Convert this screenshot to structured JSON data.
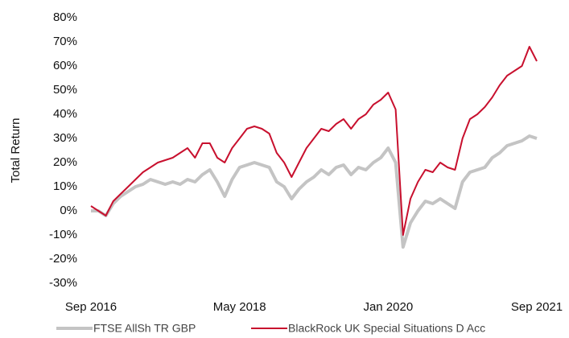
{
  "chart_data": {
    "type": "line",
    "y_label": "Total Return",
    "x": [
      "Sep 2016",
      null,
      null,
      null,
      null,
      null,
      null,
      null,
      null,
      null,
      null,
      null,
      null,
      null,
      null,
      null,
      null,
      null,
      null,
      null,
      "May 2018",
      null,
      null,
      null,
      null,
      null,
      null,
      null,
      null,
      null,
      null,
      null,
      null,
      null,
      null,
      null,
      null,
      null,
      null,
      null,
      "Jan 2020",
      null,
      null,
      null,
      null,
      null,
      null,
      null,
      null,
      null,
      null,
      null,
      null,
      null,
      null,
      null,
      null,
      null,
      null,
      null,
      "Sep 2021"
    ],
    "series": [
      {
        "name": "FTSE AllSh TR GBP",
        "color": "#c4c4c4",
        "values": [
          0,
          0,
          -2,
          3,
          6,
          8,
          10,
          11,
          13,
          12,
          11,
          12,
          11,
          13,
          12,
          15,
          17,
          12,
          6,
          13,
          18,
          19,
          20,
          19,
          18,
          12,
          10,
          5,
          9,
          12,
          14,
          17,
          15,
          18,
          19,
          15,
          18,
          17,
          20,
          22,
          26,
          20,
          -15,
          -5,
          0,
          4,
          3,
          5,
          3,
          1,
          12,
          16,
          17,
          18,
          22,
          24,
          27,
          28,
          29,
          31,
          30
        ]
      },
      {
        "name": "BlackRock UK Special Situations D Acc",
        "color": "#c8102e",
        "values": [
          2,
          0,
          -2,
          4,
          7,
          10,
          13,
          16,
          18,
          20,
          21,
          22,
          24,
          26,
          22,
          28,
          28,
          22,
          20,
          26,
          30,
          34,
          35,
          34,
          32,
          24,
          20,
          14,
          20,
          26,
          30,
          34,
          33,
          36,
          38,
          34,
          38,
          40,
          44,
          46,
          49,
          42,
          -10,
          5,
          12,
          17,
          16,
          20,
          18,
          17,
          30,
          38,
          40,
          43,
          47,
          52,
          56,
          58,
          60,
          68,
          62
        ]
      }
    ],
    "ylim": [
      -30,
      80
    ],
    "yticks": [
      {
        "value": -30,
        "label": "-30%"
      },
      {
        "value": -20,
        "label": "-20%"
      },
      {
        "value": -10,
        "label": "-10%"
      },
      {
        "value": 0,
        "label": "0%"
      },
      {
        "value": 10,
        "label": "10%"
      },
      {
        "value": 20,
        "label": "20%"
      },
      {
        "value": 30,
        "label": "30%"
      },
      {
        "value": 40,
        "label": "40%"
      },
      {
        "value": 50,
        "label": "50%"
      },
      {
        "value": 60,
        "label": "60%"
      },
      {
        "value": 70,
        "label": "70%"
      },
      {
        "value": 80,
        "label": "80%"
      }
    ],
    "grid": false,
    "legend": "bottom"
  }
}
